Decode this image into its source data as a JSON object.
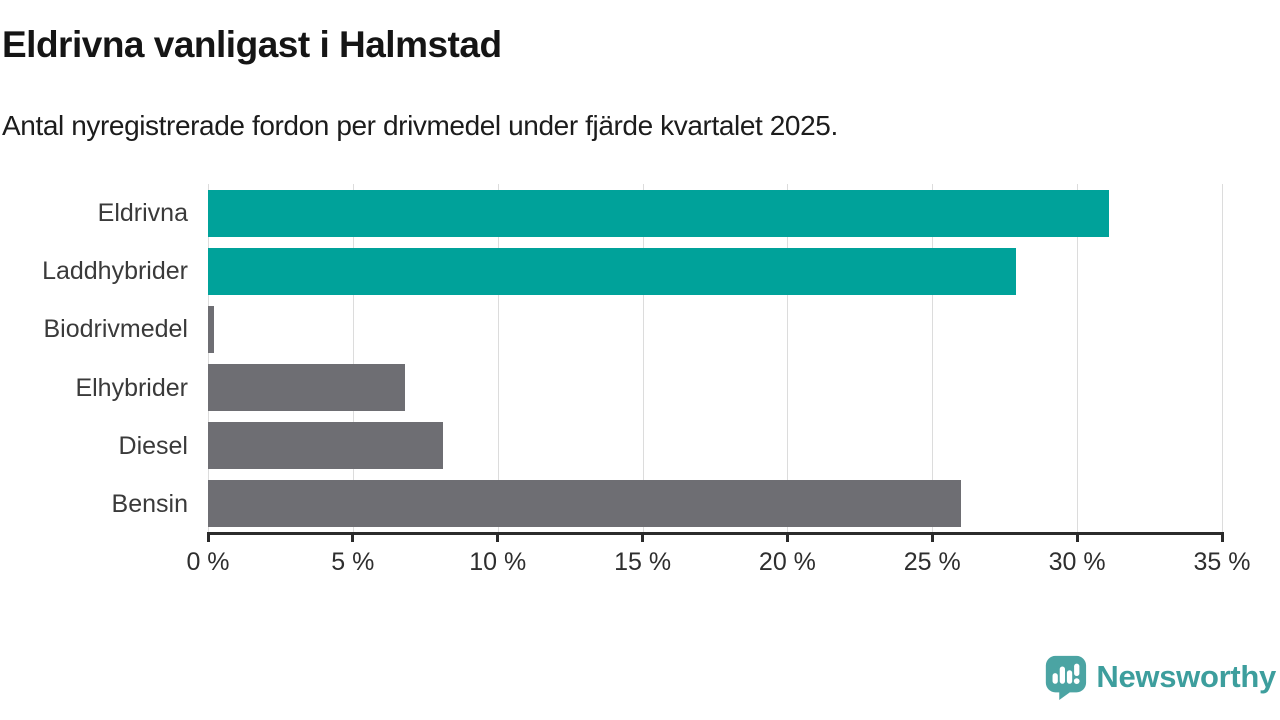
{
  "title": "Eldrivna vanligast i Halmstad",
  "subtitle": "Antal nyregistrerade fordon per drivmedel under fjärde kvartalet 2025.",
  "chart_data": {
    "type": "bar",
    "orientation": "horizontal",
    "categories": [
      "Eldrivna",
      "Laddhybrider",
      "Biodrivmedel",
      "Elhybrider",
      "Diesel",
      "Bensin"
    ],
    "values": [
      31.1,
      27.9,
      0.2,
      6.8,
      8.1,
      26.0
    ],
    "unit": "%",
    "title": "Eldrivna vanligast i Halmstad",
    "xlabel": "",
    "ylabel": "",
    "xlim": [
      0,
      35
    ],
    "x_tick_values": [
      0,
      5,
      10,
      15,
      20,
      25,
      30,
      35
    ],
    "x_tick_labels": [
      "0 %",
      "5 %",
      "10 %",
      "15 %",
      "20 %",
      "25 %",
      "30 %",
      "35 %"
    ],
    "grid": true,
    "legend": false,
    "highlight_categories": [
      "Eldrivna",
      "Laddhybrider"
    ],
    "colors": {
      "highlight": "#00a29a",
      "default": "#6e6e73",
      "gridline": "#dcdcdc",
      "axis": "#2b2b2b"
    }
  },
  "branding": {
    "logo_text": "Newsworthy",
    "logo_color": "#3d9e9d",
    "logo_icon": "newsworthy-speech-bubble-bar-chart-icon"
  }
}
